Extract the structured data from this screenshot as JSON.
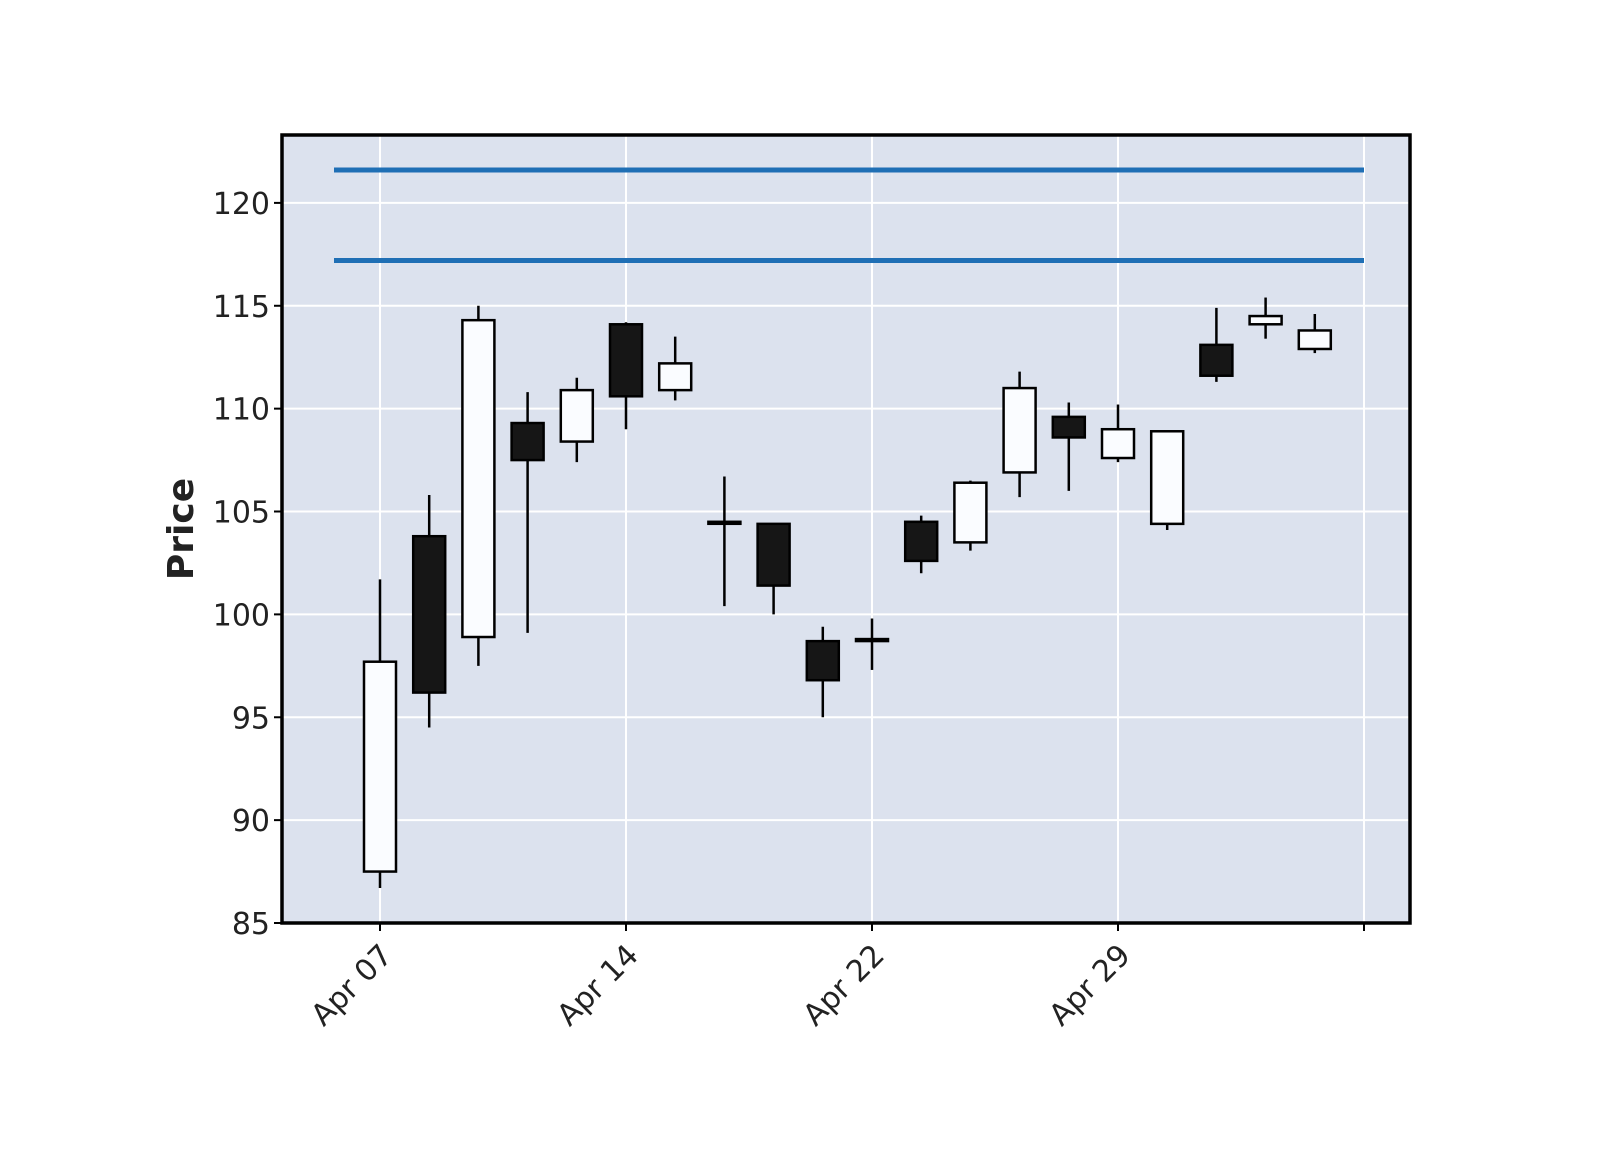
{
  "chart_data": {
    "type": "candlestick",
    "title": "",
    "xlabel": "",
    "ylabel": "Price",
    "ylim": [
      85,
      123.3
    ],
    "yticks": [
      85,
      90,
      95,
      100,
      105,
      110,
      115,
      120
    ],
    "xticks": [
      {
        "label": "Apr 07",
        "index": 0
      },
      {
        "label": "Apr 14",
        "index": 5
      },
      {
        "label": "Apr 22",
        "index": 10
      },
      {
        "label": "Apr 29",
        "index": 15
      },
      {
        "label": "",
        "index": 20
      }
    ],
    "grid": true,
    "colors": {
      "background": "#dce2ee",
      "grid": "#ffffff",
      "up_body": "#fafcff",
      "down_body": "#161616",
      "edge": "#000000",
      "hline": "#1f6fb5"
    },
    "hlines": [
      121.6,
      117.2
    ],
    "candles": [
      {
        "open": 87.5,
        "high": 101.7,
        "low": 86.7,
        "close": 97.7
      },
      {
        "open": 103.8,
        "high": 105.8,
        "low": 94.5,
        "close": 96.2
      },
      {
        "open": 98.9,
        "high": 115.0,
        "low": 97.5,
        "close": 114.3
      },
      {
        "open": 109.3,
        "high": 110.8,
        "low": 99.1,
        "close": 107.5
      },
      {
        "open": 108.4,
        "high": 111.5,
        "low": 107.4,
        "close": 110.9
      },
      {
        "open": 114.1,
        "high": 114.2,
        "low": 109.0,
        "close": 110.6
      },
      {
        "open": 110.9,
        "high": 113.5,
        "low": 110.4,
        "close": 112.2
      },
      {
        "open": 104.5,
        "high": 106.7,
        "low": 100.4,
        "close": 104.5
      },
      {
        "open": 104.4,
        "high": 104.4,
        "low": 100.0,
        "close": 101.4
      },
      {
        "open": 98.7,
        "high": 99.4,
        "low": 95.0,
        "close": 96.8
      },
      {
        "open": 98.8,
        "high": 99.8,
        "low": 97.3,
        "close": 98.8
      },
      {
        "open": 104.5,
        "high": 104.8,
        "low": 102.0,
        "close": 102.6
      },
      {
        "open": 103.5,
        "high": 106.5,
        "low": 103.1,
        "close": 106.4
      },
      {
        "open": 106.9,
        "high": 111.8,
        "low": 105.7,
        "close": 111.0
      },
      {
        "open": 109.6,
        "high": 110.3,
        "low": 106.0,
        "close": 108.6
      },
      {
        "open": 107.6,
        "high": 110.2,
        "low": 107.4,
        "close": 109.0
      },
      {
        "open": 104.4,
        "high": 108.9,
        "low": 104.1,
        "close": 108.9
      },
      {
        "open": 113.1,
        "high": 114.9,
        "low": 111.3,
        "close": 111.6
      },
      {
        "open": 114.1,
        "high": 115.4,
        "low": 113.4,
        "close": 114.5
      },
      {
        "open": 112.9,
        "high": 114.6,
        "low": 112.7,
        "close": 113.8
      }
    ]
  }
}
